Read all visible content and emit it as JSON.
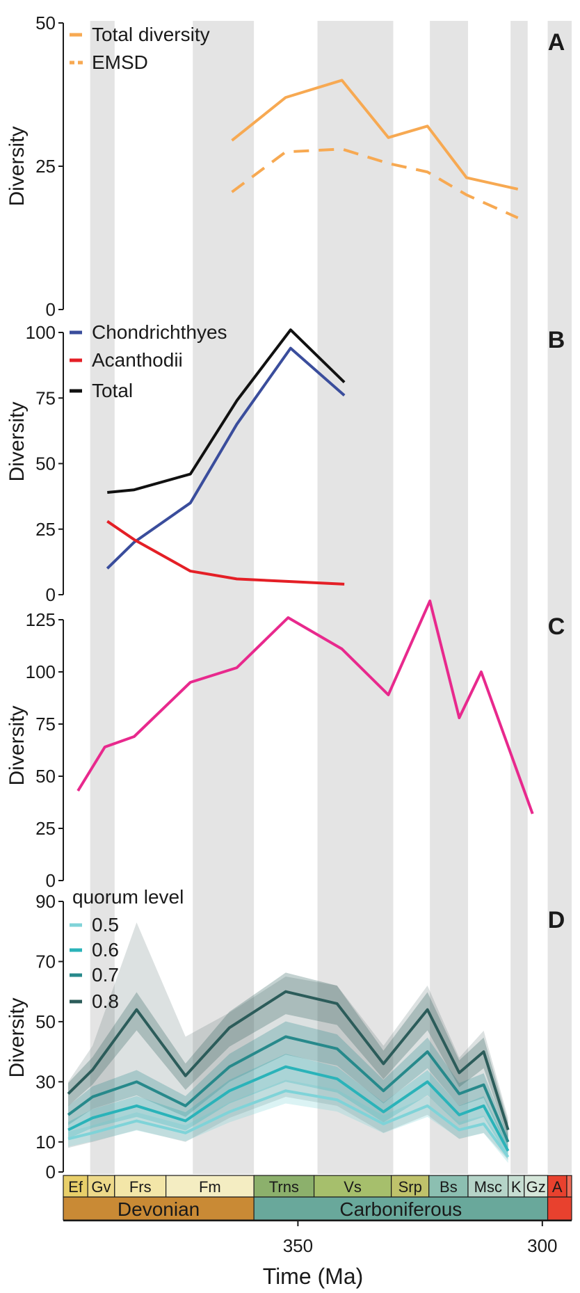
{
  "chart_data": [
    {
      "panel": "A",
      "type": "line",
      "ylabel": "Diversity",
      "ylim": [
        0,
        50
      ],
      "yticks": [
        0,
        25,
        50
      ],
      "legend_position": "top-left",
      "series": [
        {
          "name": "Total diversity",
          "color": "#F7A952",
          "dash": false,
          "x": [
            363.5,
            352.5,
            341.0,
            331.5,
            323.5,
            315.5,
            305.0
          ],
          "values": [
            29.5,
            37.0,
            40.0,
            30.0,
            32.0,
            23.0,
            21.0
          ]
        },
        {
          "name": "EMSD",
          "color": "#F7A952",
          "dash": true,
          "x": [
            363.5,
            352.5,
            341.0,
            331.5,
            323.5,
            315.5,
            305.0
          ],
          "values": [
            20.5,
            27.5,
            28.0,
            25.5,
            24.0,
            20.0,
            16.0
          ]
        }
      ]
    },
    {
      "panel": "B",
      "type": "line",
      "ylabel": "Diversity",
      "ylim": [
        0,
        100
      ],
      "yticks": [
        0,
        25,
        50,
        75,
        100
      ],
      "legend_position": "top-left",
      "series": [
        {
          "name": "Chondrichthyes",
          "color": "#3A4D9C",
          "x": [
            389.0,
            383.5,
            372.0,
            362.5,
            351.5,
            340.5
          ],
          "values": [
            10,
            20,
            35,
            65,
            94,
            76
          ]
        },
        {
          "name": "Acanthodii",
          "color": "#E41F26",
          "x": [
            389.0,
            383.5,
            372.0,
            362.5,
            351.5,
            340.5
          ],
          "values": [
            28,
            21,
            9,
            6,
            5,
            4
          ]
        },
        {
          "name": "Total",
          "color": "#111111",
          "x": [
            389.0,
            383.5,
            372.0,
            362.5,
            351.5,
            340.5
          ],
          "values": [
            39,
            40,
            46,
            74,
            101,
            81
          ]
        }
      ]
    },
    {
      "panel": "C",
      "type": "line",
      "ylabel": "Diversity",
      "ylim": [
        0,
        125
      ],
      "yticks": [
        0,
        25,
        50,
        75,
        100,
        125
      ],
      "series": [
        {
          "name": "",
          "color": "#E8298D",
          "x": [
            395.0,
            389.5,
            383.5,
            372.0,
            362.5,
            352.0,
            341.0,
            331.5,
            323.0,
            317.0,
            312.5,
            302.0
          ],
          "values": [
            43,
            64,
            69,
            95,
            102,
            126,
            111,
            89,
            134,
            78,
            100,
            32
          ]
        }
      ]
    },
    {
      "panel": "D",
      "type": "line",
      "ylabel": "Diversity",
      "ylim": [
        0,
        90
      ],
      "yticks": [
        0,
        10,
        30,
        50,
        70,
        90
      ],
      "legend_title": "quorum level",
      "legend_position": "top-left",
      "x": [
        397.0,
        392.0,
        383.0,
        373.0,
        364.0,
        352.5,
        342.0,
        332.5,
        323.5,
        317.0,
        312.0,
        307.0
      ],
      "series": [
        {
          "name": "0.5",
          "color": "#7FD3D8",
          "values": [
            11,
            13,
            17,
            13,
            20,
            27,
            24,
            16,
            22,
            14,
            16,
            5
          ]
        },
        {
          "name": "0.6",
          "color": "#2AB3B9",
          "values": [
            14,
            18,
            22,
            17,
            27,
            35,
            31,
            20,
            30,
            19,
            22,
            7
          ]
        },
        {
          "name": "0.7",
          "color": "#27898B",
          "values": [
            19,
            25,
            30,
            22,
            35,
            45,
            41,
            27,
            40,
            26,
            29,
            10
          ]
        },
        {
          "name": "0.8",
          "color": "#2C5C5A",
          "values": [
            26,
            34,
            54,
            32,
            48,
            60,
            56,
            36,
            54,
            33,
            40,
            14
          ]
        }
      ],
      "bands": {
        "upper": [
          30,
          42,
          83,
          45,
          53,
          65,
          62,
          42,
          62,
          38,
          47,
          18
        ],
        "lower": [
          8,
          10,
          14,
          10,
          18,
          25,
          22,
          13,
          19,
          11,
          13,
          4
        ]
      }
    }
  ],
  "time_axis": {
    "label": "Time (Ma)",
    "ticks": [
      350,
      300
    ],
    "xlim": [
      398,
      294
    ]
  },
  "stage_shading": [
    [
      392.5,
      387.5
    ],
    [
      371.5,
      359.0
    ],
    [
      346.0,
      330.5
    ],
    [
      323.0,
      315.2
    ],
    [
      306.5,
      303.0
    ],
    [
      298.9,
      294.0
    ]
  ],
  "stages": [
    {
      "label": "Ef",
      "start": 398.0,
      "end": 393.0,
      "color": "#E8CF6A"
    },
    {
      "label": "Gv",
      "start": 393.0,
      "end": 387.5,
      "color": "#EDD98A"
    },
    {
      "label": "Frs",
      "start": 387.5,
      "end": 377.0,
      "color": "#F3E6A8"
    },
    {
      "label": "Fm",
      "start": 377.0,
      "end": 359.0,
      "color": "#F4EDC2"
    },
    {
      "label": "Trns",
      "start": 359.0,
      "end": 346.7,
      "color": "#8CB06C"
    },
    {
      "label": "Vs",
      "start": 346.7,
      "end": 330.9,
      "color": "#A6BF6C"
    },
    {
      "label": "Srp",
      "start": 330.9,
      "end": 323.2,
      "color": "#BFC26B"
    },
    {
      "label": "Bs",
      "start": 323.2,
      "end": 315.2,
      "color": "#8CBFB1"
    },
    {
      "label": "Msc",
      "start": 315.2,
      "end": 307.0,
      "color": "#B5D4C8"
    },
    {
      "label": "K",
      "start": 307.0,
      "end": 303.7,
      "color": "#C6DED2"
    },
    {
      "label": "Gz",
      "start": 303.7,
      "end": 298.9,
      "color": "#D5E6D9"
    },
    {
      "label": "A",
      "start": 298.9,
      "end": 295.0,
      "color": "#E8412E"
    },
    {
      "label": "",
      "start": 295.0,
      "end": 294.0,
      "color": "#EF6A56"
    }
  ],
  "periods": [
    {
      "label": "Devonian",
      "start": 398.0,
      "end": 359.0,
      "color": "#C98A35"
    },
    {
      "label": "Carboniferous",
      "start": 359.0,
      "end": 298.9,
      "color": "#69A89B"
    },
    {
      "label": "",
      "start": 298.9,
      "end": 294.0,
      "color": "#E8412E"
    }
  ]
}
